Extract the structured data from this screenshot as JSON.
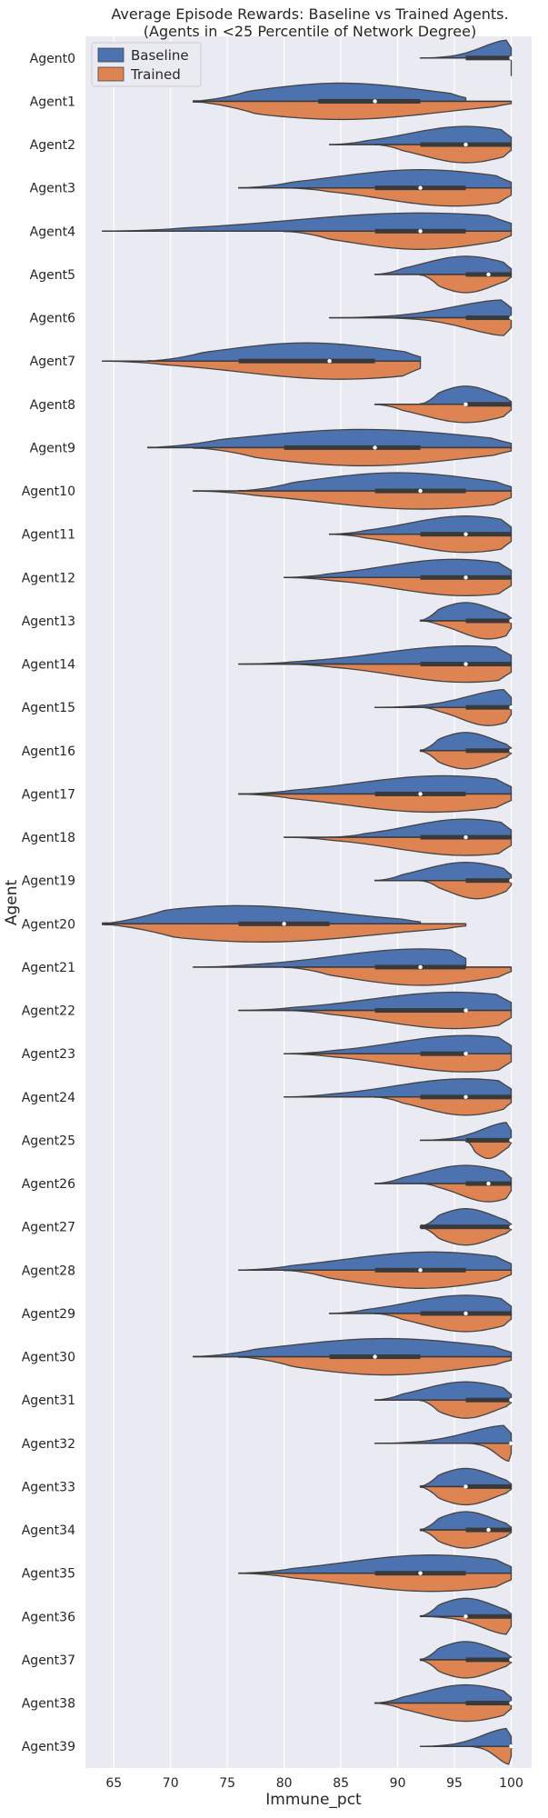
{
  "chart_data": {
    "type": "violin",
    "title_line1": "Average Episode Rewards: Baseline vs Trained Agents.",
    "title_line2": "(Agents in <25 Percentile of Network Degree)",
    "xlabel": "Immune_pct",
    "ylabel": "Agent",
    "xlim": [
      62.5,
      101.8
    ],
    "xticks": [
      65,
      70,
      75,
      80,
      85,
      90,
      95,
      100
    ],
    "grid": true,
    "legend": {
      "position": "top-left",
      "entries": [
        "Baseline",
        "Trained"
      ]
    },
    "colors": {
      "Baseline": "#4c72b0",
      "Trained": "#dd8452",
      "background": "#eaeaf2",
      "grid": "#ffffff",
      "outline": "#444444"
    },
    "split": true,
    "agents": [
      {
        "name": "Agent0",
        "baseline": {
          "range": [
            92,
            100
          ],
          "peak": 100
        },
        "trained": {
          "range": [
            100,
            100
          ],
          "peak": 100
        },
        "median": 100,
        "q1": 96,
        "q3": 100
      },
      {
        "name": "Agent1",
        "baseline": {
          "range": [
            72,
            96
          ],
          "peak": 85
        },
        "trained": {
          "range": [
            72,
            100
          ],
          "peak": 85
        },
        "median": 88,
        "q1": 83,
        "q3": 92
      },
      {
        "name": "Agent2",
        "baseline": {
          "range": [
            84,
            100
          ],
          "peak": 96
        },
        "trained": {
          "range": [
            88,
            100
          ],
          "peak": 96
        },
        "median": 96,
        "q1": 92,
        "q3": 100
      },
      {
        "name": "Agent3",
        "baseline": {
          "range": [
            76,
            100
          ],
          "peak": 92
        },
        "trained": {
          "range": [
            80,
            100
          ],
          "peak": 95
        },
        "median": 92,
        "q1": 88,
        "q3": 96
      },
      {
        "name": "Agent4",
        "baseline": {
          "range": [
            64,
            100
          ],
          "peak": 92
        },
        "trained": {
          "range": [
            80,
            100
          ],
          "peak": 92
        },
        "median": 92,
        "q1": 88,
        "q3": 96
      },
      {
        "name": "Agent5",
        "baseline": {
          "range": [
            88,
            100
          ],
          "peak": 96
        },
        "trained": {
          "range": [
            92,
            100
          ],
          "peak": 96
        },
        "median": 98,
        "q1": 96,
        "q3": 100
      },
      {
        "name": "Agent6",
        "baseline": {
          "range": [
            84,
            100
          ],
          "peak": 100
        },
        "trained": {
          "range": [
            88,
            100
          ],
          "peak": 100
        },
        "median": 100,
        "q1": 96,
        "q3": 100
      },
      {
        "name": "Agent7",
        "baseline": {
          "range": [
            68,
            92
          ],
          "peak": 82
        },
        "trained": {
          "range": [
            64,
            92
          ],
          "peak": 85
        },
        "median": 84,
        "q1": 76,
        "q3": 88
      },
      {
        "name": "Agent8",
        "baseline": {
          "range": [
            92,
            100
          ],
          "peak": 96
        },
        "trained": {
          "range": [
            88,
            100
          ],
          "peak": 96
        },
        "median": 96,
        "q1": 96,
        "q3": 100
      },
      {
        "name": "Agent9",
        "baseline": {
          "range": [
            68,
            100
          ],
          "peak": 87
        },
        "trained": {
          "range": [
            72,
            100
          ],
          "peak": 87
        },
        "median": 88,
        "q1": 80,
        "q3": 92
      },
      {
        "name": "Agent10",
        "baseline": {
          "range": [
            76,
            100
          ],
          "peak": 90
        },
        "trained": {
          "range": [
            72,
            100
          ],
          "peak": 92
        },
        "median": 92,
        "q1": 88,
        "q3": 96
      },
      {
        "name": "Agent11",
        "baseline": {
          "range": [
            84,
            100
          ],
          "peak": 96
        },
        "trained": {
          "range": [
            84,
            100
          ],
          "peak": 96
        },
        "median": 96,
        "q1": 92,
        "q3": 100
      },
      {
        "name": "Agent12",
        "baseline": {
          "range": [
            80,
            100
          ],
          "peak": 95
        },
        "trained": {
          "range": [
            80,
            100
          ],
          "peak": 96
        },
        "median": 96,
        "q1": 92,
        "q3": 100
      },
      {
        "name": "Agent13",
        "baseline": {
          "range": [
            92,
            100
          ],
          "peak": 96
        },
        "trained": {
          "range": [
            92,
            100
          ],
          "peak": 98
        },
        "median": 100,
        "q1": 96,
        "q3": 100
      },
      {
        "name": "Agent14",
        "baseline": {
          "range": [
            76,
            100
          ],
          "peak": 96
        },
        "trained": {
          "range": [
            80,
            100
          ],
          "peak": 96
        },
        "median": 96,
        "q1": 92,
        "q3": 100
      },
      {
        "name": "Agent15",
        "baseline": {
          "range": [
            88,
            100
          ],
          "peak": 100
        },
        "trained": {
          "range": [
            92,
            100
          ],
          "peak": 98
        },
        "median": 100,
        "q1": 96,
        "q3": 100
      },
      {
        "name": "Agent16",
        "baseline": {
          "range": [
            92,
            100
          ],
          "peak": 96
        },
        "trained": {
          "range": [
            92,
            100
          ],
          "peak": 96
        },
        "median": 100,
        "q1": 96,
        "q3": 100
      },
      {
        "name": "Agent17",
        "baseline": {
          "range": [
            76,
            100
          ],
          "peak": 94
        },
        "trained": {
          "range": [
            76,
            100
          ],
          "peak": 93
        },
        "median": 92,
        "q1": 88,
        "q3": 96
      },
      {
        "name": "Agent18",
        "baseline": {
          "range": [
            84,
            100
          ],
          "peak": 96
        },
        "trained": {
          "range": [
            80,
            100
          ],
          "peak": 96
        },
        "median": 96,
        "q1": 92,
        "q3": 100
      },
      {
        "name": "Agent19",
        "baseline": {
          "range": [
            88,
            100
          ],
          "peak": 96
        },
        "trained": {
          "range": [
            92,
            100
          ],
          "peak": 97
        },
        "median": 100,
        "q1": 96,
        "q3": 100
      },
      {
        "name": "Agent20",
        "baseline": {
          "range": [
            64,
            92
          ],
          "peak": 76
        },
        "trained": {
          "range": [
            64,
            96
          ],
          "peak": 78
        },
        "median": 80,
        "q1": 76,
        "q3": 84
      },
      {
        "name": "Agent21",
        "baseline": {
          "range": [
            72,
            96
          ],
          "peak": 92
        },
        "trained": {
          "range": [
            80,
            100
          ],
          "peak": 92
        },
        "median": 92,
        "q1": 88,
        "q3": 96
      },
      {
        "name": "Agent22",
        "baseline": {
          "range": [
            76,
            100
          ],
          "peak": 95
        },
        "trained": {
          "range": [
            80,
            100
          ],
          "peak": 95
        },
        "median": 96,
        "q1": 88,
        "q3": 96
      },
      {
        "name": "Agent23",
        "baseline": {
          "range": [
            80,
            100
          ],
          "peak": 96
        },
        "trained": {
          "range": [
            80,
            100
          ],
          "peak": 96
        },
        "median": 96,
        "q1": 92,
        "q3": 96
      },
      {
        "name": "Agent24",
        "baseline": {
          "range": [
            80,
            100
          ],
          "peak": 96
        },
        "trained": {
          "range": [
            88,
            100
          ],
          "peak": 96
        },
        "median": 96,
        "q1": 92,
        "q3": 100
      },
      {
        "name": "Agent25",
        "baseline": {
          "range": [
            92,
            100
          ],
          "peak": 100
        },
        "trained": {
          "range": [
            96,
            100
          ],
          "peak": 98
        },
        "median": 100,
        "q1": 96,
        "q3": 100
      },
      {
        "name": "Agent26",
        "baseline": {
          "range": [
            88,
            100
          ],
          "peak": 96
        },
        "trained": {
          "range": [
            92,
            100
          ],
          "peak": 98
        },
        "median": 98,
        "q1": 96,
        "q3": 100
      },
      {
        "name": "Agent27",
        "baseline": {
          "range": [
            92,
            100
          ],
          "peak": 96
        },
        "trained": {
          "range": [
            92,
            100
          ],
          "peak": 96
        },
        "median": 100,
        "q1": 92,
        "q3": 100
      },
      {
        "name": "Agent28",
        "baseline": {
          "range": [
            76,
            100
          ],
          "peak": 93
        },
        "trained": {
          "range": [
            80,
            100
          ],
          "peak": 92
        },
        "median": 92,
        "q1": 88,
        "q3": 96
      },
      {
        "name": "Agent29",
        "baseline": {
          "range": [
            84,
            100
          ],
          "peak": 96
        },
        "trained": {
          "range": [
            88,
            100
          ],
          "peak": 96
        },
        "median": 96,
        "q1": 92,
        "q3": 100
      },
      {
        "name": "Agent30",
        "baseline": {
          "range": [
            72,
            100
          ],
          "peak": 89
        },
        "trained": {
          "range": [
            76,
            100
          ],
          "peak": 89
        },
        "median": 88,
        "q1": 84,
        "q3": 92
      },
      {
        "name": "Agent31",
        "baseline": {
          "range": [
            88,
            100
          ],
          "peak": 96
        },
        "trained": {
          "range": [
            92,
            100
          ],
          "peak": 96
        },
        "median": 100,
        "q1": 96,
        "q3": 100
      },
      {
        "name": "Agent32",
        "baseline": {
          "range": [
            88,
            100
          ],
          "peak": 100
        },
        "trained": {
          "range": [
            96,
            100
          ],
          "peak": 100
        },
        "median": 100,
        "q1": 100,
        "q3": 100
      },
      {
        "name": "Agent33",
        "baseline": {
          "range": [
            92,
            100
          ],
          "peak": 96
        },
        "trained": {
          "range": [
            92,
            100
          ],
          "peak": 96
        },
        "median": 96,
        "q1": 96,
        "q3": 100
      },
      {
        "name": "Agent34",
        "baseline": {
          "range": [
            92,
            100
          ],
          "peak": 96
        },
        "trained": {
          "range": [
            92,
            100
          ],
          "peak": 96
        },
        "median": 98,
        "q1": 96,
        "q3": 100
      },
      {
        "name": "Agent35",
        "baseline": {
          "range": [
            76,
            100
          ],
          "peak": 93
        },
        "trained": {
          "range": [
            76,
            100
          ],
          "peak": 93
        },
        "median": 92,
        "q1": 88,
        "q3": 96
      },
      {
        "name": "Agent36",
        "baseline": {
          "range": [
            92,
            100
          ],
          "peak": 96
        },
        "trained": {
          "range": [
            92,
            100
          ],
          "peak": 100
        },
        "median": 96,
        "q1": 96,
        "q3": 100
      },
      {
        "name": "Agent37",
        "baseline": {
          "range": [
            92,
            100
          ],
          "peak": 96
        },
        "trained": {
          "range": [
            92,
            100
          ],
          "peak": 96
        },
        "median": 100,
        "q1": 96,
        "q3": 100
      },
      {
        "name": "Agent38",
        "baseline": {
          "range": [
            88,
            100
          ],
          "peak": 96
        },
        "trained": {
          "range": [
            88,
            100
          ],
          "peak": 96
        },
        "median": 100,
        "q1": 96,
        "q3": 100
      },
      {
        "name": "Agent39",
        "baseline": {
          "range": [
            92,
            100
          ],
          "peak": 100
        },
        "trained": {
          "range": [
            96,
            100
          ],
          "peak": 100
        },
        "median": 100,
        "q1": 100,
        "q3": 100
      }
    ]
  }
}
